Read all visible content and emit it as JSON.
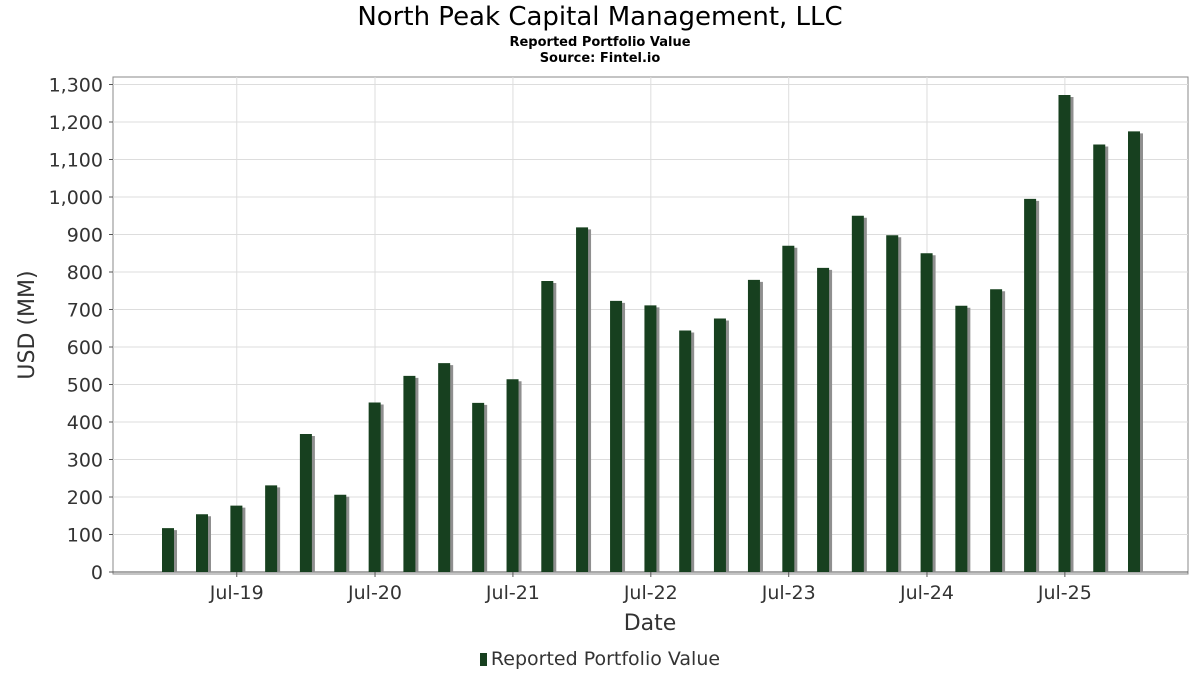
{
  "title": "North Peak Capital Management, LLC",
  "subtitle": "Reported Portfolio Value",
  "source": "Source: Fintel.io",
  "legend_label": "Reported Portfolio Value",
  "colors": {
    "bar": "#17401f",
    "shadow": "#8f8f8f",
    "grid": "#dddddd",
    "axis": "#555555",
    "text": "#333333"
  },
  "chart_data": {
    "type": "bar",
    "title": "North Peak Capital Management, LLC",
    "subtitle": "Reported Portfolio Value",
    "xlabel": "Date",
    "ylabel": "USD (MM)",
    "ylim": [
      0,
      1320
    ],
    "yticks": [
      0,
      100,
      200,
      300,
      400,
      500,
      600,
      700,
      800,
      900,
      1000,
      1100,
      1200,
      1300
    ],
    "xticks": [
      "Jul-19",
      "Jul-20",
      "Jul-21",
      "Jul-22",
      "Jul-23",
      "Jul-24",
      "Jul-25"
    ],
    "grid": true,
    "legend_position": "bottom",
    "series": [
      {
        "name": "Reported Portfolio Value",
        "x": [
          "2018-12-31",
          "2019-03-31",
          "2019-06-30",
          "2019-09-30",
          "2019-12-31",
          "2020-03-31",
          "2020-06-30",
          "2020-09-30",
          "2020-12-31",
          "2021-03-31",
          "2021-06-30",
          "2021-09-30",
          "2021-12-31",
          "2022-03-31",
          "2022-06-30",
          "2022-09-30",
          "2022-12-31",
          "2023-03-31",
          "2023-06-30",
          "2023-09-30",
          "2023-12-31",
          "2024-03-31",
          "2024-06-30",
          "2024-09-30",
          "2024-12-31",
          "2025-03-31",
          "2025-06-30",
          "2025-09-30",
          "2025-12-31"
        ],
        "values": [
          117,
          154,
          177,
          231,
          368,
          206,
          452,
          523,
          557,
          451,
          514,
          776,
          919,
          723,
          711,
          644,
          676,
          779,
          870,
          811,
          950,
          898,
          850,
          710,
          754,
          995,
          1272,
          1140,
          1175
        ]
      }
    ]
  }
}
